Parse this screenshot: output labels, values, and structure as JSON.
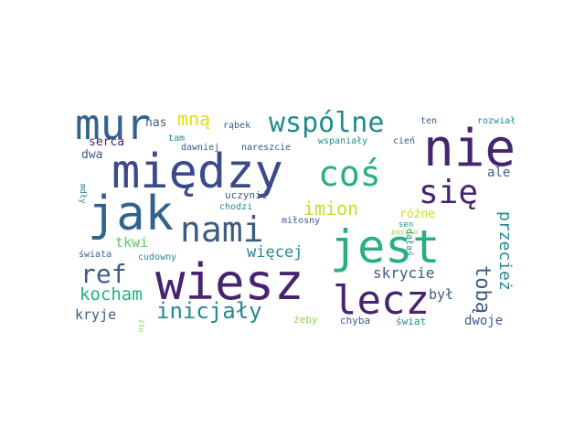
{
  "palette": {
    "dark_purple": "#46246f",
    "indigo": "#3b4a8c",
    "blue": "#33638d",
    "slate": "#3d5b85",
    "teal": "#238a8d",
    "green": "#29af7f",
    "light_green": "#5ec962",
    "lime": "#8fd744",
    "yellow": "#c8e020",
    "bright_yellow": "#e6d81a"
  },
  "words": [
    {
      "id": "nie",
      "text": "nie"
    },
    {
      "id": "miedzy",
      "text": "między"
    },
    {
      "id": "jak",
      "text": "jak"
    },
    {
      "id": "jest",
      "text": "jest"
    },
    {
      "id": "wiesz",
      "text": "wiesz"
    },
    {
      "id": "mur",
      "text": "mur"
    },
    {
      "id": "nami",
      "text": "nami"
    },
    {
      "id": "cos",
      "text": "coś"
    },
    {
      "id": "lecz",
      "text": "lecz"
    },
    {
      "id": "sie",
      "text": "się"
    },
    {
      "id": "wspolne",
      "text": "wspólne"
    },
    {
      "id": "ref",
      "text": "ref"
    },
    {
      "id": "inicjaly",
      "text": "inicjały"
    },
    {
      "id": "kocham",
      "text": "kocham"
    },
    {
      "id": "toba",
      "text": "tobą"
    },
    {
      "id": "imion",
      "text": "imion"
    },
    {
      "id": "mna",
      "text": "mną"
    },
    {
      "id": "wiecej",
      "text": "więcej"
    },
    {
      "id": "skrycie",
      "text": "skrycie"
    },
    {
      "id": "kryje",
      "text": "kryje"
    },
    {
      "id": "byl",
      "text": "był"
    },
    {
      "id": "przeciez",
      "text": "przecież"
    },
    {
      "id": "tkwi",
      "text": "tkwi"
    },
    {
      "id": "dwoje",
      "text": "dwoje"
    },
    {
      "id": "ale",
      "text": "ale"
    },
    {
      "id": "serca",
      "text": "serca"
    },
    {
      "id": "nas",
      "text": "nas"
    },
    {
      "id": "dwa",
      "text": "dwa"
    },
    {
      "id": "rozne",
      "text": "różne"
    },
    {
      "id": "uczynic",
      "text": "uczynić"
    },
    {
      "id": "chodzi",
      "text": "chodzi"
    },
    {
      "id": "milosny",
      "text": "miłosny"
    },
    {
      "id": "cudowny",
      "text": "cudowny"
    },
    {
      "id": "swiata",
      "text": "świata"
    },
    {
      "id": "rabek",
      "text": "rąbek"
    },
    {
      "id": "tam",
      "text": "tam"
    },
    {
      "id": "dawniej",
      "text": "dawniej"
    },
    {
      "id": "nareszcie",
      "text": "nareszcie"
    },
    {
      "id": "wspanialy",
      "text": "wspaniały"
    },
    {
      "id": "cien",
      "text": "cień"
    },
    {
      "id": "ten",
      "text": "ten"
    },
    {
      "id": "rozwial",
      "text": "rozwiał"
    },
    {
      "id": "sen",
      "text": "sen"
    },
    {
      "id": "dalas",
      "text": "dałaś"
    },
    {
      "id": "poszlo",
      "text": "poszło"
    },
    {
      "id": "mdly",
      "text": "mdły"
    },
    {
      "id": "zlo",
      "text": "zło"
    },
    {
      "id": "zeby",
      "text": "żeby"
    },
    {
      "id": "chyba",
      "text": "chyba"
    },
    {
      "id": "swiat",
      "text": "świat"
    }
  ]
}
